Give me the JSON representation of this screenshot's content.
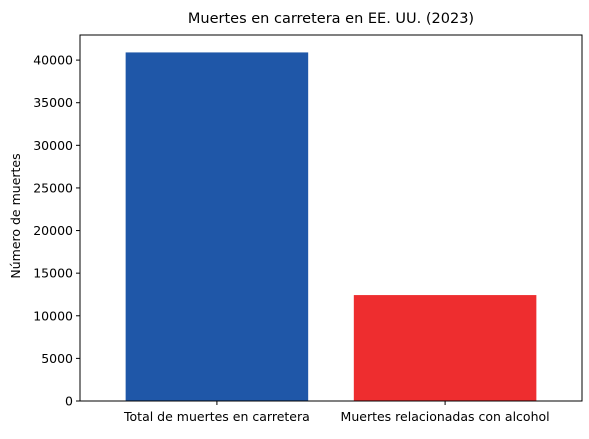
{
  "chart_data": {
    "type": "bar",
    "title": "Muertes en carretera en EE. UU. (2023)",
    "xlabel": "",
    "ylabel": "Número de muertes",
    "categories": [
      "Total de muertes en carretera",
      "Muertes relacionadas con alcohol"
    ],
    "values": [
      40901,
      12429
    ],
    "colors": [
      "#1f57a8",
      "#ee2d2f"
    ],
    "ylim": [
      0,
      42945
    ],
    "yticks": [
      0,
      5000,
      10000,
      15000,
      20000,
      25000,
      30000,
      35000,
      40000
    ],
    "grid": false,
    "legend": "none"
  }
}
